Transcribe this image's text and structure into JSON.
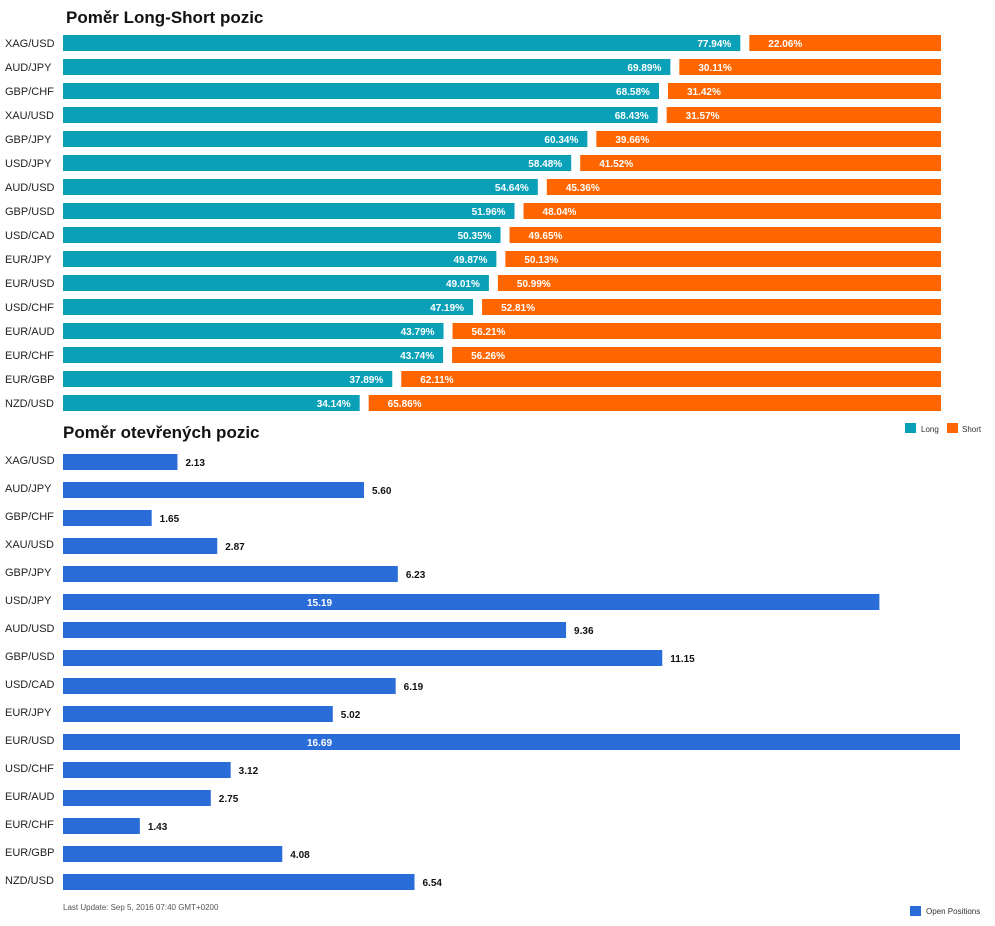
{
  "chart_data": [
    {
      "type": "bar",
      "orientation": "horizontal",
      "stacked": true,
      "title": "Poměr Long-Short pozic",
      "categories": [
        "XAG/USD",
        "AUD/JPY",
        "GBP/CHF",
        "XAU/USD",
        "GBP/JPY",
        "USD/JPY",
        "AUD/USD",
        "GBP/USD",
        "USD/CAD",
        "EUR/JPY",
        "EUR/USD",
        "USD/CHF",
        "EUR/AUD",
        "EUR/CHF",
        "EUR/GBP",
        "NZD/USD"
      ],
      "series": [
        {
          "name": "Long",
          "color": "#0aa0b8",
          "values": [
            77.94,
            69.89,
            68.58,
            68.43,
            60.34,
            58.48,
            54.64,
            51.96,
            50.35,
            49.87,
            49.01,
            47.19,
            43.79,
            43.74,
            37.89,
            34.14
          ],
          "labels": [
            "77.94%",
            "69.89%",
            "68.58%",
            "68.43%",
            "60.34%",
            "58.48%",
            "54.64%",
            "51.96%",
            "50.35%",
            "49.87%",
            "49.01%",
            "47.19%",
            "43.79%",
            "43.74%",
            "37.89%",
            "34.14%"
          ]
        },
        {
          "name": "Short",
          "color": "#ff6600",
          "values": [
            22.06,
            30.11,
            31.42,
            31.57,
            39.66,
            41.52,
            45.36,
            48.04,
            49.65,
            50.13,
            50.99,
            52.81,
            56.21,
            56.26,
            62.11,
            65.86
          ],
          "labels": [
            "22.06%",
            "30.11%",
            "31.42%",
            "31.57%",
            "39.66%",
            "41.52%",
            "45.36%",
            "48.04%",
            "49.65%",
            "50.13%",
            "50.99%",
            "52.81%",
            "56.21%",
            "56.26%",
            "62.11%",
            "65.86%"
          ]
        }
      ],
      "xlim": [
        0,
        100
      ],
      "legend_position": "bottom-right"
    },
    {
      "type": "bar",
      "orientation": "horizontal",
      "title": "Poměr otevřených pozic",
      "categories": [
        "XAG/USD",
        "AUD/JPY",
        "GBP/CHF",
        "XAU/USD",
        "GBP/JPY",
        "USD/JPY",
        "AUD/USD",
        "GBP/USD",
        "USD/CAD",
        "EUR/JPY",
        "EUR/USD",
        "USD/CHF",
        "EUR/AUD",
        "EUR/CHF",
        "EUR/GBP",
        "NZD/USD"
      ],
      "series": [
        {
          "name": "Open Positions",
          "color": "#2a6dd9",
          "values": [
            2.13,
            5.6,
            1.65,
            2.87,
            6.23,
            15.19,
            9.36,
            11.15,
            6.19,
            5.02,
            16.69,
            3.12,
            2.75,
            1.43,
            4.08,
            6.54
          ],
          "labels": [
            "2.13",
            "5.60",
            "1.65",
            "2.87",
            "6.23",
            "15.19",
            "9.36",
            "11.15",
            "6.19",
            "5.02",
            "16.69",
            "3.12",
            "2.75",
            "1.43",
            "4.08",
            "6.54"
          ]
        }
      ],
      "xlim": [
        0,
        16.69
      ],
      "legend_position": "bottom-right"
    }
  ],
  "footer": {
    "last_update": "Last Update: Sep 5, 2016 07:40 GMT+0200"
  }
}
